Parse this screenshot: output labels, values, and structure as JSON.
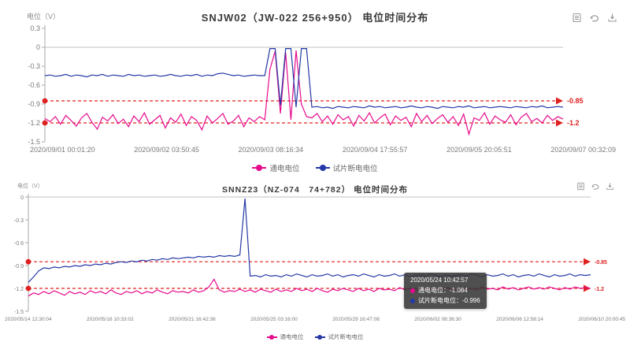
{
  "page": {
    "background": "#ffffff"
  },
  "colors": {
    "pink": "#e60a8c",
    "blue": "#2438a6",
    "threshold_red": "#e02020",
    "axis_gray": "#aaaaaa",
    "text_gray": "#7a7a7a",
    "title_dark": "#3a3a3a",
    "tooltip_bg": "rgba(55,55,55,0.88)"
  },
  "charts": [
    {
      "title": "SNJW02（JW-022  256+950）  电位时间分布",
      "y_axis_label": "电位（V）",
      "y_ticks": [
        "0.3",
        "0",
        "-0.3",
        "-0.6",
        "-0.9",
        "-1.2",
        "-1.5"
      ],
      "x_ticks": [
        "2020/09/01 00:01:20",
        "2020/09/02 03:50:45",
        "2020/09/03 08:16:34",
        "2020/09/04 17:55:57",
        "2020/09/05 20:05:51",
        "2020/09/07 00:32:09"
      ],
      "thresholds": [
        {
          "value": -0.85,
          "label": "-0.85"
        },
        {
          "value": -1.2,
          "label": "-1.2"
        }
      ],
      "legend": [
        {
          "label": "通电电位",
          "color_key": "pink"
        },
        {
          "label": "试片断电电位",
          "color_key": "blue"
        }
      ],
      "toolbox": {
        "icons": [
          "data-view-icon",
          "refresh-icon",
          "save-image-icon"
        ]
      },
      "chart_data": {
        "type": "line",
        "xlabel": "时间",
        "ylabel": "电位（V）",
        "ylim": [
          -1.5,
          0.3
        ],
        "x_range": [
          "2020/09/01 00:01:20",
          "2020/09/07 00:32:09"
        ],
        "grid": false,
        "legend_position": "bottom",
        "series": [
          {
            "name": "通电电位",
            "color": "#e60a8c",
            "values": [
              -1.13,
              -1.18,
              -1.1,
              -1.22,
              -1.08,
              -1.16,
              -1.25,
              -1.12,
              -1.05,
              -1.19,
              -1.3,
              -1.11,
              -1.17,
              -1.07,
              -1.21,
              -1.14,
              -1.26,
              -1.09,
              -1.18,
              -1.04,
              -1.22,
              -1.15,
              -1.08,
              -1.28,
              -1.12,
              -1.19,
              -1.06,
              -1.24,
              -1.1,
              -1.16,
              -1.31,
              -1.09,
              -1.2,
              -1.13,
              -1.05,
              -1.22,
              -1.17,
              -1.08,
              -1.26,
              -1.12,
              -1.18,
              -1.1,
              -1.15,
              -0.35,
              -0.06,
              -1.05,
              -0.08,
              -1.15,
              -0.05,
              -0.9,
              -1.1,
              -1.12,
              -1.05,
              -1.18,
              -1.09,
              -1.22,
              -1.07,
              -1.15,
              -1.1,
              -1.25,
              -1.08,
              -1.17,
              -1.04,
              -1.2,
              -1.12,
              -1.06,
              -1.23,
              -1.09,
              -1.16,
              -1.11,
              -1.26,
              -1.05,
              -1.18,
              -1.08,
              -1.21,
              -1.13,
              -1.07,
              -1.19,
              -1.1,
              -1.24,
              -1.06,
              -1.38,
              -1.12,
              -1.16,
              -1.04,
              -1.22,
              -1.09,
              -1.15,
              -1.19,
              -1.07,
              -1.23,
              -1.11,
              -1.05,
              -1.18,
              -1.13,
              -1.2,
              -1.08,
              -1.16,
              -1.1,
              -1.14
            ]
          },
          {
            "name": "试片断电电位",
            "color": "#2438a6",
            "values": [
              -0.45,
              -0.44,
              -0.46,
              -0.45,
              -0.43,
              -0.46,
              -0.44,
              -0.45,
              -0.47,
              -0.44,
              -0.45,
              -0.43,
              -0.46,
              -0.44,
              -0.45,
              -0.46,
              -0.43,
              -0.45,
              -0.44,
              -0.46,
              -0.45,
              -0.44,
              -0.46,
              -0.45,
              -0.43,
              -0.45,
              -0.46,
              -0.44,
              -0.45,
              -0.43,
              -0.46,
              -0.44,
              -0.45,
              -0.42,
              -0.41,
              -0.43,
              -0.45,
              -0.44,
              -0.46,
              -0.45,
              -0.44,
              -0.45,
              -0.45,
              -0.02,
              -0.02,
              -0.92,
              -0.02,
              -0.02,
              -0.95,
              -0.02,
              -0.02,
              -0.95,
              -0.94,
              -0.96,
              -0.95,
              -0.97,
              -0.94,
              -0.95,
              -0.96,
              -0.94,
              -0.95,
              -0.96,
              -0.93,
              -0.95,
              -0.94,
              -0.96,
              -0.95,
              -0.94,
              -0.96,
              -0.95,
              -0.93,
              -0.95,
              -0.96,
              -0.94,
              -0.95,
              -0.97,
              -0.94,
              -0.95,
              -0.96,
              -0.94,
              -0.95,
              -0.93,
              -0.96,
              -0.95,
              -0.94,
              -0.96,
              -0.95,
              -0.94,
              -0.95,
              -0.96,
              -0.94,
              -0.95,
              -0.96,
              -0.94,
              -0.95,
              -0.93,
              -0.96,
              -0.95,
              -0.94,
              -0.95
            ]
          }
        ]
      }
    },
    {
      "title": "SNNZ23（NZ-074　74+782） 电位时间分布",
      "y_axis_label": "电位（V）",
      "y_ticks": [
        "0",
        "-0.3",
        "-0.6",
        "-0.9",
        "-1.2",
        "-1.5"
      ],
      "x_ticks": [
        "2020/05/14 12:30:04",
        "2020/05/18 10:33:02",
        "2020/05/21 16:42:36",
        "2020/05/25 03:16:00",
        "2020/05/29 16:47:08",
        "2020/06/02 08:36:30",
        "2020/06/06 12:58:14",
        "2020/06/10 20:00:45"
      ],
      "thresholds": [
        {
          "value": -0.85,
          "label": "-0.85"
        },
        {
          "value": -1.2,
          "label": "-1.2"
        }
      ],
      "legend": [
        {
          "label": "通电电位",
          "color_key": "pink"
        },
        {
          "label": "试片断电电位",
          "color_key": "blue"
        }
      ],
      "toolbox": {
        "icons": [
          "data-view-icon",
          "refresh-icon",
          "save-image-icon"
        ]
      },
      "tooltip": {
        "timestamp": "2020/05/24 10:42:57",
        "rows": [
          {
            "label": "通电电位",
            "value": "-1.084",
            "color_key": "pink"
          },
          {
            "label": "试片断电电位",
            "value": "-0.996",
            "color_key": "blue"
          }
        ]
      },
      "chart_data": {
        "type": "line",
        "xlabel": "时间",
        "ylabel": "电位（V）",
        "ylim": [
          -1.5,
          0
        ],
        "x_range": [
          "2020/05/14 12:30:04",
          "2020/06/10 20:00:45"
        ],
        "grid": false,
        "legend_position": "bottom",
        "series": [
          {
            "name": "通电电位",
            "color": "#e60a8c",
            "values": [
              -1.3,
              -1.26,
              -1.28,
              -1.24,
              -1.27,
              -1.23,
              -1.26,
              -1.29,
              -1.24,
              -1.27,
              -1.25,
              -1.28,
              -1.23,
              -1.26,
              -1.24,
              -1.27,
              -1.22,
              -1.26,
              -1.28,
              -1.24,
              -1.26,
              -1.23,
              -1.27,
              -1.24,
              -1.26,
              -1.22,
              -1.25,
              -1.27,
              -1.23,
              -1.25,
              -1.24,
              -1.26,
              -1.22,
              -1.25,
              -1.23,
              -1.18,
              -1.08,
              -1.22,
              -1.25,
              -1.23,
              -1.24,
              -1.21,
              -1.24,
              -1.22,
              -1.25,
              -1.21,
              -1.23,
              -1.25,
              -1.21,
              -1.24,
              -1.22,
              -1.24,
              -1.2,
              -1.23,
              -1.21,
              -1.24,
              -1.2,
              -1.23,
              -1.25,
              -1.21,
              -1.23,
              -1.2,
              -1.22,
              -1.24,
              -1.2,
              -1.23,
              -1.21,
              -1.24,
              -1.2,
              -1.22,
              -1.21,
              -1.23,
              -1.19,
              -1.22,
              -1.2,
              -1.23,
              -1.21,
              -1.19,
              -1.22,
              -1.2,
              -1.22,
              -1.19,
              -1.21,
              -1.23,
              -1.19,
              -1.22,
              -1.2,
              -1.22,
              -1.18,
              -1.21,
              -1.2,
              -1.22,
              -1.18,
              -1.21,
              -1.19,
              -1.22,
              -1.2,
              -1.18,
              -1.21,
              -1.19,
              -1.21,
              -1.18,
              -1.2,
              -1.22,
              -1.19,
              -1.21,
              -1.18,
              -1.2,
              -1.19,
              -1.2
            ]
          },
          {
            "name": "试片断电电位",
            "color": "#2438a6",
            "values": [
              -1.12,
              -1.05,
              -0.97,
              -0.93,
              -0.94,
              -0.92,
              -0.93,
              -0.91,
              -0.92,
              -0.9,
              -0.91,
              -0.89,
              -0.9,
              -0.88,
              -0.89,
              -0.87,
              -0.88,
              -0.86,
              -0.85,
              -0.86,
              -0.84,
              -0.85,
              -0.83,
              -0.84,
              -0.82,
              -0.83,
              -0.81,
              -0.82,
              -0.8,
              -0.81,
              -0.8,
              -0.79,
              -0.8,
              -0.78,
              -0.79,
              -0.78,
              -0.79,
              -0.77,
              -0.78,
              -0.77,
              -0.78,
              -0.76,
              -0.02,
              -1.04,
              -1.03,
              -1.05,
              -1.02,
              -1.04,
              -1.03,
              -1.05,
              -1.02,
              -1.04,
              -1.01,
              -1.03,
              -1.05,
              -1.02,
              -1.04,
              -1.03,
              -1.01,
              -1.04,
              -1.02,
              -1.05,
              -1.03,
              -1.02,
              -1.04,
              -1.01,
              -1.03,
              -1.05,
              -1.02,
              -1.04,
              -1.03,
              -1.01,
              -1.04,
              -1.02,
              -1.05,
              -1.03,
              -1.02,
              -1.04,
              -1.01,
              -1.03,
              -1.05,
              -1.02,
              -1.04,
              -1.03,
              -1.02,
              -1.04,
              -1.01,
              -1.03,
              -1.05,
              -1.02,
              -1.04,
              -1.03,
              -1.01,
              -1.04,
              -1.02,
              -1.05,
              -1.03,
              -1.02,
              -1.04,
              -1.01,
              -1.03,
              -1.05,
              -1.02,
              -1.04,
              -1.03,
              -1.01,
              -1.04,
              -1.02,
              -1.03,
              -1.02
            ]
          }
        ]
      }
    }
  ]
}
